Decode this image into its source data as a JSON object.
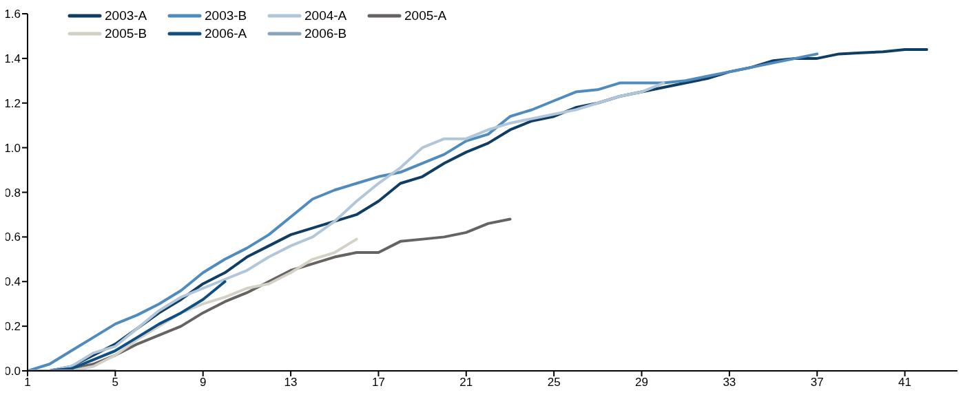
{
  "chart_data": {
    "type": "line",
    "x": [
      1,
      2,
      3,
      4,
      5,
      6,
      7,
      8,
      9,
      10,
      11,
      12,
      13,
      14,
      15,
      16,
      17,
      18,
      19,
      20,
      21,
      22,
      23,
      24,
      25,
      26,
      27,
      28,
      29,
      30,
      31,
      32,
      33,
      34,
      35,
      36,
      37,
      38,
      39,
      40,
      41,
      42
    ],
    "series": [
      {
        "name": "2003-A",
        "color": "#0f3d63",
        "values": [
          0,
          0,
          0.02,
          0.07,
          0.12,
          0.19,
          0.26,
          0.32,
          0.39,
          0.44,
          0.51,
          0.56,
          0.61,
          0.64,
          0.67,
          0.7,
          0.76,
          0.84,
          0.87,
          0.93,
          0.98,
          1.02,
          1.08,
          1.12,
          1.14,
          1.18,
          1.2,
          1.23,
          1.25,
          1.27,
          1.29,
          1.31,
          1.34,
          1.36,
          1.39,
          1.4,
          1.4,
          1.42,
          1.425,
          1.43,
          1.44,
          1.44
        ]
      },
      {
        "name": "2003-B",
        "color": "#4f8bbd",
        "values": [
          0,
          0.03,
          0.09,
          0.15,
          0.21,
          0.25,
          0.3,
          0.36,
          0.44,
          0.5,
          0.55,
          0.61,
          0.69,
          0.77,
          0.81,
          0.84,
          0.87,
          0.89,
          0.93,
          0.97,
          1.03,
          1.06,
          1.14,
          1.17,
          1.21,
          1.25,
          1.26,
          1.29,
          1.29,
          1.29,
          1.3,
          1.32,
          1.34,
          1.36,
          1.38,
          1.4,
          1.42,
          null,
          null,
          null,
          null,
          null
        ]
      },
      {
        "name": "2004-A",
        "color": "#b1c6d8",
        "values": [
          0,
          0,
          0.02,
          0.08,
          0.11,
          0.19,
          0.27,
          0.33,
          0.37,
          0.41,
          0.45,
          0.51,
          0.56,
          0.6,
          0.67,
          0.76,
          0.84,
          0.91,
          1.0,
          1.04,
          1.04,
          1.08,
          1.11,
          1.13,
          1.15,
          1.17,
          1.2,
          1.23,
          1.25,
          1.29,
          null,
          null,
          null,
          null,
          null,
          null,
          null,
          null,
          null,
          null,
          null,
          null
        ]
      },
      {
        "name": "2005-A",
        "color": "#676363",
        "values": [
          0,
          0,
          0.01,
          0.03,
          0.07,
          0.12,
          0.16,
          0.2,
          0.26,
          0.31,
          0.35,
          0.4,
          0.45,
          0.48,
          0.51,
          0.53,
          0.53,
          0.58,
          0.59,
          0.6,
          0.62,
          0.66,
          0.68,
          null,
          null,
          null,
          null,
          null,
          null,
          null,
          null,
          null,
          null,
          null,
          null,
          null,
          null,
          null,
          null,
          null,
          null,
          null
        ]
      },
      {
        "name": "2005-B",
        "color": "#d3d0c6",
        "values": [
          0,
          0,
          0,
          0.02,
          0.07,
          0.14,
          0.2,
          0.26,
          0.3,
          0.33,
          0.37,
          0.39,
          0.44,
          0.5,
          0.53,
          0.59,
          null,
          null,
          null,
          null,
          null,
          null,
          null,
          null,
          null,
          null,
          null,
          null,
          null,
          null,
          null,
          null,
          null,
          null,
          null,
          null,
          null,
          null,
          null,
          null,
          null,
          null
        ]
      },
      {
        "name": "2006-A",
        "color": "#0f4f82",
        "values": [
          0,
          0,
          0.01,
          0.05,
          0.09,
          0.15,
          0.21,
          0.26,
          0.32,
          0.4,
          null,
          null,
          null,
          null,
          null,
          null,
          null,
          null,
          null,
          null,
          null,
          null,
          null,
          null,
          null,
          null,
          null,
          null,
          null,
          null,
          null,
          null,
          null,
          null,
          null,
          null,
          null,
          null,
          null,
          null,
          null,
          null
        ]
      },
      {
        "name": "2006-B",
        "color": "#8aa4bd",
        "values": [
          0,
          0,
          0,
          0,
          0,
          null,
          null,
          null,
          null,
          null,
          null,
          null,
          null,
          null,
          null,
          null,
          null,
          null,
          null,
          null,
          null,
          null,
          null,
          null,
          null,
          null,
          null,
          null,
          null,
          null,
          null,
          null,
          null,
          null,
          null,
          null,
          null,
          null,
          null,
          null,
          null,
          null
        ]
      }
    ],
    "xlim": [
      1,
      43.4
    ],
    "xticks": [
      1,
      5,
      9,
      13,
      17,
      21,
      25,
      29,
      33,
      37,
      41
    ],
    "ylim": [
      0,
      1.6
    ],
    "yticks": [
      {
        "value": 0,
        "label": "0.0"
      },
      0.2,
      0.4,
      0.6,
      0.8,
      {
        "value": 1,
        "label": "1.0"
      },
      1.2,
      1.4,
      1.6
    ],
    "grid": false,
    "legend": "top left",
    "marker": "none",
    "line_style": "solid"
  }
}
